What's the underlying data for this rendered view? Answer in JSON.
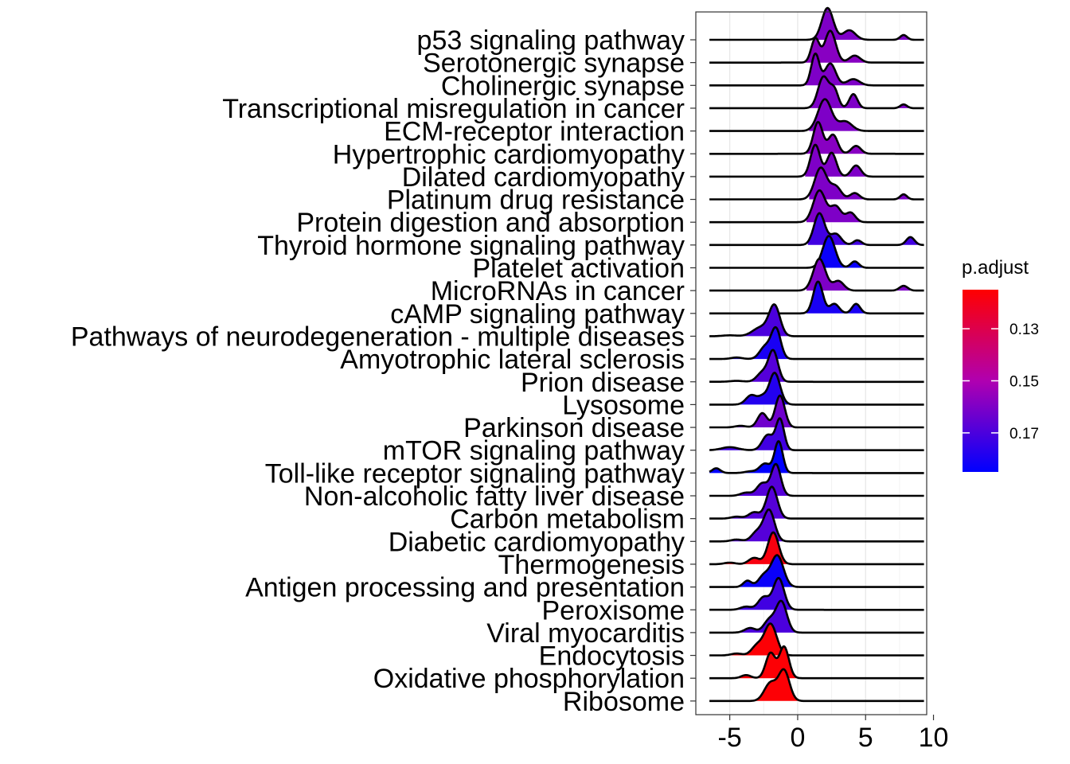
{
  "chart_data": {
    "type": "ridgeline",
    "xlim": [
      -7.5,
      9.5
    ],
    "x_ticks": [
      -5,
      0,
      5,
      10
    ],
    "x_tick_labels": [
      "-5",
      "0",
      "5",
      "10"
    ],
    "xlabel": "",
    "ylabel": "",
    "grid": true,
    "legend": {
      "title": "p.adjust",
      "position": "right",
      "type": "colorbar",
      "min": 0.115,
      "max": 0.185,
      "ticks": [
        0.13,
        0.15,
        0.17
      ],
      "tick_labels": [
        "0.13",
        "0.15",
        "0.17"
      ],
      "low_color": "#ff0000",
      "high_color": "#0000ff"
    },
    "x_range": [
      -6.5,
      9.3
    ],
    "ridges": [
      {
        "label": "p53 signaling pathway",
        "p_adjust": 0.16,
        "x_start": 0.8,
        "peaks": [
          [
            2.2,
            0.42,
            1.0
          ],
          [
            3.8,
            0.45,
            0.3
          ],
          [
            7.8,
            0.25,
            0.15
          ]
        ]
      },
      {
        "label": "Serotonergic synapse",
        "p_adjust": 0.158,
        "x_start": 0.5,
        "peaks": [
          [
            1.3,
            0.3,
            0.75
          ],
          [
            2.4,
            0.4,
            1.0
          ],
          [
            4.2,
            0.4,
            0.22
          ]
        ]
      },
      {
        "label": "Cholinergic synapse",
        "p_adjust": 0.16,
        "x_start": 0.5,
        "peaks": [
          [
            1.3,
            0.3,
            1.0
          ],
          [
            2.4,
            0.4,
            0.7
          ],
          [
            4.1,
            0.45,
            0.2
          ]
        ]
      },
      {
        "label": "Transcriptional misregulation in cancer",
        "p_adjust": 0.16,
        "x_start": 0.8,
        "peaks": [
          [
            1.9,
            0.4,
            1.0
          ],
          [
            2.7,
            0.3,
            0.55
          ],
          [
            4.1,
            0.3,
            0.45
          ],
          [
            7.8,
            0.25,
            0.12
          ]
        ]
      },
      {
        "label": "ECM-receptor interaction",
        "p_adjust": 0.16,
        "x_start": 0.8,
        "peaks": [
          [
            2.0,
            0.5,
            1.0
          ],
          [
            3.5,
            0.5,
            0.3
          ]
        ]
      },
      {
        "label": "Hypertrophic cardiomyopathy",
        "p_adjust": 0.158,
        "x_start": 0.6,
        "peaks": [
          [
            1.5,
            0.35,
            1.0
          ],
          [
            2.6,
            0.35,
            0.6
          ],
          [
            4.3,
            0.35,
            0.25
          ]
        ]
      },
      {
        "label": "Dilated cardiomyopathy",
        "p_adjust": 0.16,
        "x_start": 0.5,
        "peaks": [
          [
            1.3,
            0.35,
            1.0
          ],
          [
            2.5,
            0.35,
            0.75
          ],
          [
            4.3,
            0.35,
            0.35
          ]
        ]
      },
      {
        "label": "Platinum drug resistance",
        "p_adjust": 0.16,
        "x_start": 0.8,
        "peaks": [
          [
            1.7,
            0.45,
            1.0
          ],
          [
            2.8,
            0.4,
            0.4
          ],
          [
            4.2,
            0.35,
            0.2
          ],
          [
            7.8,
            0.25,
            0.16
          ]
        ]
      },
      {
        "label": "Protein digestion and absorption",
        "p_adjust": 0.16,
        "x_start": 0.6,
        "peaks": [
          [
            1.6,
            0.45,
            1.0
          ],
          [
            2.8,
            0.4,
            0.5
          ],
          [
            3.9,
            0.35,
            0.3
          ]
        ]
      },
      {
        "label": "Thyroid hormone signaling pathway",
        "p_adjust": 0.172,
        "x_start": 0.7,
        "peaks": [
          [
            1.6,
            0.4,
            1.0
          ],
          [
            2.8,
            0.4,
            0.35
          ],
          [
            4.4,
            0.3,
            0.15
          ],
          [
            8.3,
            0.3,
            0.25
          ]
        ]
      },
      {
        "label": "Platelet activation",
        "p_adjust": 0.183,
        "x_start": 0.9,
        "peaks": [
          [
            2.3,
            0.45,
            1.0
          ],
          [
            4.2,
            0.3,
            0.2
          ]
        ]
      },
      {
        "label": "MicroRNAs in cancer",
        "p_adjust": 0.16,
        "x_start": 0.6,
        "peaks": [
          [
            1.6,
            0.45,
            1.0
          ],
          [
            3.0,
            0.4,
            0.3
          ],
          [
            7.8,
            0.3,
            0.15
          ]
        ]
      },
      {
        "label": "cAMP signaling pathway",
        "p_adjust": 0.18,
        "x_start": 0.6,
        "peaks": [
          [
            1.5,
            0.35,
            1.0
          ],
          [
            2.7,
            0.35,
            0.3
          ],
          [
            4.3,
            0.3,
            0.3
          ]
        ]
      },
      {
        "label": "Pathways of neurodegeneration - multiple diseases",
        "p_adjust": 0.17,
        "x_start": -6.5,
        "peaks": [
          [
            -1.7,
            0.4,
            1.0
          ],
          [
            -2.7,
            0.6,
            0.3
          ],
          [
            -5.0,
            0.5,
            0.03
          ]
        ]
      },
      {
        "label": "Amyotrophic lateral sclerosis",
        "p_adjust": 0.18,
        "x_start": -6.5,
        "peaks": [
          [
            -1.6,
            0.35,
            1.0
          ],
          [
            -2.4,
            0.4,
            0.4
          ],
          [
            -4.5,
            0.4,
            0.05
          ]
        ]
      },
      {
        "label": "Prion disease",
        "p_adjust": 0.168,
        "x_start": -6.5,
        "peaks": [
          [
            -1.8,
            0.35,
            1.0
          ],
          [
            -2.6,
            0.4,
            0.3
          ],
          [
            -4.5,
            0.5,
            0.03
          ]
        ]
      },
      {
        "label": "Lysosome",
        "p_adjust": 0.178,
        "x_start": -6.5,
        "peaks": [
          [
            -1.7,
            0.4,
            1.0
          ],
          [
            -3.4,
            0.4,
            0.3
          ],
          [
            -2.6,
            0.3,
            0.2
          ]
        ]
      },
      {
        "label": "Parkinson disease",
        "p_adjust": 0.163,
        "x_start": -6.5,
        "peaks": [
          [
            -1.3,
            0.35,
            1.0
          ],
          [
            -2.6,
            0.35,
            0.45
          ],
          [
            -4.2,
            0.4,
            0.05
          ]
        ]
      },
      {
        "label": "mTOR signaling pathway",
        "p_adjust": 0.172,
        "x_start": -6.5,
        "peaks": [
          [
            -1.3,
            0.3,
            1.0
          ],
          [
            -2.2,
            0.4,
            0.5
          ],
          [
            -5.0,
            0.6,
            0.1
          ]
        ]
      },
      {
        "label": "Toll-like receptor signaling pathway",
        "p_adjust": 0.185,
        "x_start": -6.5,
        "peaks": [
          [
            -1.4,
            0.3,
            1.0
          ],
          [
            -2.4,
            0.4,
            0.3
          ],
          [
            -6.0,
            0.3,
            0.15
          ],
          [
            -3.5,
            0.4,
            0.05
          ]
        ]
      },
      {
        "label": "Non-alcoholic fatty liver disease",
        "p_adjust": 0.168,
        "x_start": -6.5,
        "peaks": [
          [
            -1.6,
            0.35,
            1.0
          ],
          [
            -2.6,
            0.4,
            0.4
          ],
          [
            -3.8,
            0.4,
            0.1
          ]
        ]
      },
      {
        "label": "Carbon metabolism",
        "p_adjust": 0.168,
        "x_start": -6.5,
        "peaks": [
          [
            -1.9,
            0.4,
            1.0
          ],
          [
            -3.2,
            0.4,
            0.2
          ],
          [
            -4.5,
            0.4,
            0.06
          ]
        ]
      },
      {
        "label": "Diabetic cardiomyopathy",
        "p_adjust": 0.168,
        "x_start": -6.5,
        "peaks": [
          [
            -2.1,
            0.4,
            1.0
          ],
          [
            -3.0,
            0.4,
            0.3
          ],
          [
            -4.5,
            0.4,
            0.06
          ]
        ]
      },
      {
        "label": "Thermogenesis",
        "p_adjust": 0.118,
        "x_start": -6.5,
        "peaks": [
          [
            -1.8,
            0.4,
            1.0
          ],
          [
            -3.2,
            0.4,
            0.2
          ],
          [
            -5.0,
            0.4,
            0.05
          ]
        ]
      },
      {
        "label": "Antigen processing and presentation",
        "p_adjust": 0.183,
        "x_start": -6.5,
        "peaks": [
          [
            -1.5,
            0.45,
            1.0
          ],
          [
            -2.5,
            0.4,
            0.35
          ],
          [
            -3.7,
            0.3,
            0.2
          ]
        ]
      },
      {
        "label": "Peroxisome",
        "p_adjust": 0.172,
        "x_start": -6.5,
        "peaks": [
          [
            -1.4,
            0.4,
            1.0
          ],
          [
            -2.5,
            0.4,
            0.4
          ],
          [
            -3.8,
            0.4,
            0.1
          ]
        ]
      },
      {
        "label": "Viral myocarditis",
        "p_adjust": 0.17,
        "x_start": -6.5,
        "peaks": [
          [
            -1.2,
            0.4,
            1.0
          ],
          [
            -2.1,
            0.4,
            0.4
          ],
          [
            -3.5,
            0.4,
            0.15
          ]
        ]
      },
      {
        "label": "Endocytosis",
        "p_adjust": 0.116,
        "x_start": -6.5,
        "peaks": [
          [
            -2.0,
            0.45,
            1.0
          ],
          [
            -3.0,
            0.4,
            0.3
          ],
          [
            -4.5,
            0.4,
            0.06
          ]
        ]
      },
      {
        "label": "Oxidative phosphorylation",
        "p_adjust": 0.116,
        "x_start": -6.5,
        "peaks": [
          [
            -1.0,
            0.35,
            1.0
          ],
          [
            -2.0,
            0.35,
            0.8
          ],
          [
            -3.8,
            0.35,
            0.1
          ]
        ]
      },
      {
        "label": "Ribosome",
        "p_adjust": 0.116,
        "x_start": -6.5,
        "peaks": [
          [
            -1.0,
            0.4,
            1.0
          ],
          [
            -2.0,
            0.45,
            0.6
          ]
        ]
      }
    ]
  }
}
